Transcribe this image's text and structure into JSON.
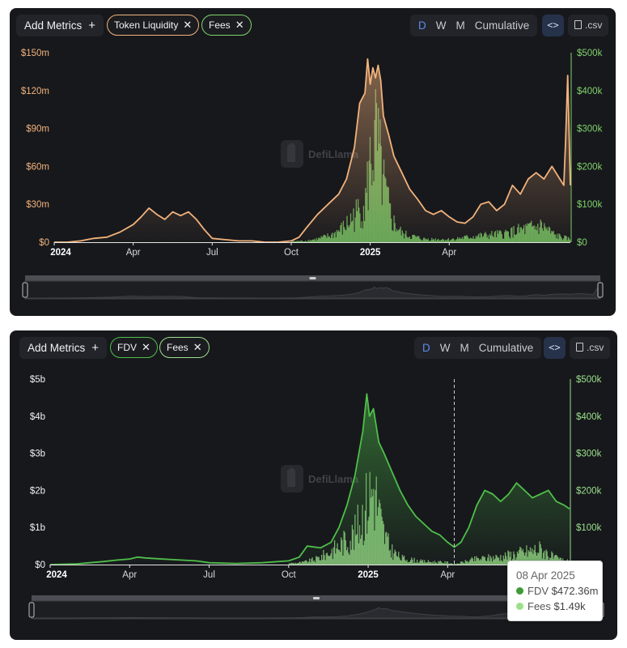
{
  "panels": [
    {
      "toolbar": {
        "add_metrics_label": "Add Metrics",
        "add_icon": "plus-icon",
        "chips": [
          {
            "label": "Token Liquidity",
            "color": "#f2b37c"
          },
          {
            "label": "Fees",
            "color": "#7fd26a"
          }
        ],
        "periods": [
          "D",
          "W",
          "M",
          "Cumulative"
        ],
        "active_period": "D",
        "embed_icon": "code-embed-icon",
        "csv_label": ".csv",
        "csv_icon": "file-icon"
      }
    },
    {
      "toolbar": {
        "add_metrics_label": "Add Metrics",
        "add_icon": "plus-icon",
        "chips": [
          {
            "label": "FDV",
            "color": "#4fbf4a"
          },
          {
            "label": "Fees",
            "color": "#9be08a"
          }
        ],
        "periods": [
          "D",
          "W",
          "M",
          "Cumulative"
        ],
        "active_period": "D",
        "embed_icon": "code-embed-icon",
        "csv_label": ".csv",
        "csv_icon": "file-icon"
      },
      "tooltip": {
        "date": "08 Apr 2025",
        "rows": [
          {
            "name": "FDV",
            "value": "$472.36m",
            "color": "#3d9a36"
          },
          {
            "name": "Fees",
            "value": "$1.49k",
            "color": "#9be08a"
          }
        ]
      }
    }
  ],
  "watermark": "DefiLlama",
  "chart_data": [
    {
      "type": "area",
      "x_ticks": [
        "2024",
        "Apr",
        "Jul",
        "Oct",
        "2025",
        "Apr"
      ],
      "x_tick_months": [
        0,
        3,
        6,
        9,
        12,
        15
      ],
      "xlim_months": [
        0,
        19.6
      ],
      "y_left_ticks": [
        "$0",
        "$30m",
        "$60m",
        "$90m",
        "$120m",
        "$150m"
      ],
      "y_right_ticks": [
        "$0",
        "$100k",
        "$200k",
        "$300k",
        "$400k",
        "$500k"
      ],
      "ylim_left": [
        0,
        150
      ],
      "ylim_right": [
        0,
        500
      ],
      "series": [
        {
          "name": "Token Liquidity",
          "axis": "left",
          "color": "#f2b37c",
          "unit": "$m",
          "points": [
            [
              0,
              0
            ],
            [
              0.5,
              0
            ],
            [
              1,
              1
            ],
            [
              1.5,
              3
            ],
            [
              2,
              4
            ],
            [
              2.5,
              8
            ],
            [
              3,
              14
            ],
            [
              3.3,
              20
            ],
            [
              3.6,
              27
            ],
            [
              3.9,
              22
            ],
            [
              4.2,
              18
            ],
            [
              4.5,
              24
            ],
            [
              4.8,
              21
            ],
            [
              5.1,
              24
            ],
            [
              5.4,
              18
            ],
            [
              5.7,
              10
            ],
            [
              6,
              3
            ],
            [
              6.5,
              2
            ],
            [
              7,
              1
            ],
            [
              7.5,
              1
            ],
            [
              8,
              0
            ],
            [
              8.5,
              0
            ],
            [
              9,
              1
            ],
            [
              9.3,
              4
            ],
            [
              9.6,
              12
            ],
            [
              10,
              22
            ],
            [
              10.4,
              30
            ],
            [
              10.8,
              38
            ],
            [
              11.1,
              50
            ],
            [
              11.4,
              75
            ],
            [
              11.6,
              110
            ],
            [
              11.8,
              118
            ],
            [
              11.9,
              145
            ],
            [
              12,
              125
            ],
            [
              12.1,
              138
            ],
            [
              12.2,
              130
            ],
            [
              12.3,
              140
            ],
            [
              12.4,
              128
            ],
            [
              12.5,
              100
            ],
            [
              12.7,
              85
            ],
            [
              12.9,
              68
            ],
            [
              13.2,
              55
            ],
            [
              13.5,
              42
            ],
            [
              13.8,
              34
            ],
            [
              14.1,
              25
            ],
            [
              14.4,
              22
            ],
            [
              14.7,
              25
            ],
            [
              15,
              20
            ],
            [
              15.3,
              16
            ],
            [
              15.6,
              15
            ],
            [
              15.9,
              20
            ],
            [
              16.2,
              30
            ],
            [
              16.5,
              32
            ],
            [
              16.8,
              25
            ],
            [
              17.1,
              30
            ],
            [
              17.4,
              45
            ],
            [
              17.7,
              38
            ],
            [
              18,
              50
            ],
            [
              18.3,
              55
            ],
            [
              18.6,
              50
            ],
            [
              18.9,
              60
            ],
            [
              19.2,
              50
            ],
            [
              19.35,
              45
            ],
            [
              19.42,
              80
            ],
            [
              19.5,
              132
            ],
            [
              19.6,
              45
            ]
          ]
        },
        {
          "name": "Fees",
          "axis": "right",
          "color": "#7fd26a",
          "unit": "$k",
          "points": [
            [
              9,
              3
            ],
            [
              9.5,
              5
            ],
            [
              10,
              12
            ],
            [
              10.5,
              25
            ],
            [
              11,
              55
            ],
            [
              11.5,
              110
            ],
            [
              11.8,
              150
            ],
            [
              12,
              300
            ],
            [
              12.2,
              380
            ],
            [
              12.5,
              200
            ],
            [
              12.8,
              80
            ],
            [
              13.2,
              30
            ],
            [
              14,
              12
            ],
            [
              15,
              10
            ],
            [
              16,
              22
            ],
            [
              17,
              30
            ],
            [
              18,
              50
            ],
            [
              18.5,
              60
            ],
            [
              19,
              25
            ],
            [
              19.6,
              10
            ]
          ]
        }
      ]
    },
    {
      "type": "area",
      "x_ticks": [
        "2024",
        "Apr",
        "Jul",
        "Oct",
        "2025",
        "Apr"
      ],
      "x_tick_months": [
        0,
        3,
        6,
        9,
        12,
        15
      ],
      "xlim_months": [
        0,
        19.6
      ],
      "y_left_ticks": [
        "$0",
        "$1b",
        "$2b",
        "$3b",
        "$4b",
        "$5b"
      ],
      "y_right_ticks": [
        "$100k",
        "$200k",
        "$300k",
        "$400k",
        "$500k"
      ],
      "y_right_tick_values": [
        100,
        200,
        300,
        400,
        500
      ],
      "ylim_left": [
        0,
        5
      ],
      "ylim_right": [
        0,
        500
      ],
      "crosshair_month": 15.25,
      "series": [
        {
          "name": "FDV",
          "axis": "left",
          "color": "#4fbf4a",
          "unit": "$b",
          "points": [
            [
              0,
              0
            ],
            [
              1,
              0.02
            ],
            [
              1.5,
              0.05
            ],
            [
              2,
              0.08
            ],
            [
              2.5,
              0.12
            ],
            [
              3,
              0.15
            ],
            [
              3.3,
              0.2
            ],
            [
              3.6,
              0.18
            ],
            [
              4,
              0.16
            ],
            [
              4.5,
              0.14
            ],
            [
              5,
              0.12
            ],
            [
              5.5,
              0.1
            ],
            [
              6,
              0.05
            ],
            [
              7,
              0.03
            ],
            [
              8,
              0.05
            ],
            [
              9,
              0.1
            ],
            [
              9.4,
              0.2
            ],
            [
              9.7,
              0.5
            ],
            [
              10.2,
              0.45
            ],
            [
              10.6,
              0.6
            ],
            [
              10.9,
              1.0
            ],
            [
              11.2,
              1.6
            ],
            [
              11.5,
              2.4
            ],
            [
              11.8,
              3.6
            ],
            [
              11.95,
              4.6
            ],
            [
              12.05,
              4.0
            ],
            [
              12.2,
              4.2
            ],
            [
              12.4,
              3.3
            ],
            [
              12.6,
              3.0
            ],
            [
              12.9,
              2.5
            ],
            [
              13.2,
              2.0
            ],
            [
              13.5,
              1.6
            ],
            [
              13.8,
              1.3
            ],
            [
              14.1,
              1.1
            ],
            [
              14.4,
              0.9
            ],
            [
              14.7,
              0.8
            ],
            [
              15,
              0.6
            ],
            [
              15.25,
              0.47
            ],
            [
              15.5,
              0.6
            ],
            [
              15.8,
              1.0
            ],
            [
              16.1,
              1.6
            ],
            [
              16.4,
              2.0
            ],
            [
              16.7,
              1.9
            ],
            [
              17,
              1.7
            ],
            [
              17.3,
              1.9
            ],
            [
              17.6,
              2.2
            ],
            [
              17.9,
              2.0
            ],
            [
              18.2,
              1.8
            ],
            [
              18.5,
              1.9
            ],
            [
              18.8,
              2.0
            ],
            [
              19.1,
              1.7
            ],
            [
              19.4,
              1.6
            ],
            [
              19.6,
              1.5
            ]
          ]
        },
        {
          "name": "Fees",
          "axis": "right",
          "color": "#9be08a",
          "unit": "$k",
          "points": [
            [
              9,
              5
            ],
            [
              9.5,
              8
            ],
            [
              10,
              20
            ],
            [
              10.5,
              45
            ],
            [
              11,
              80
            ],
            [
              11.5,
              120
            ],
            [
              11.8,
              200
            ],
            [
              12,
              260
            ],
            [
              12.2,
              300
            ],
            [
              12.5,
              140
            ],
            [
              12.8,
              60
            ],
            [
              13.2,
              25
            ],
            [
              14,
              12
            ],
            [
              15,
              8
            ],
            [
              15.25,
              1.49
            ],
            [
              16,
              20
            ],
            [
              17,
              30
            ],
            [
              18,
              50
            ],
            [
              18.5,
              60
            ],
            [
              19,
              25
            ],
            [
              19.6,
              10
            ]
          ]
        }
      ]
    }
  ]
}
